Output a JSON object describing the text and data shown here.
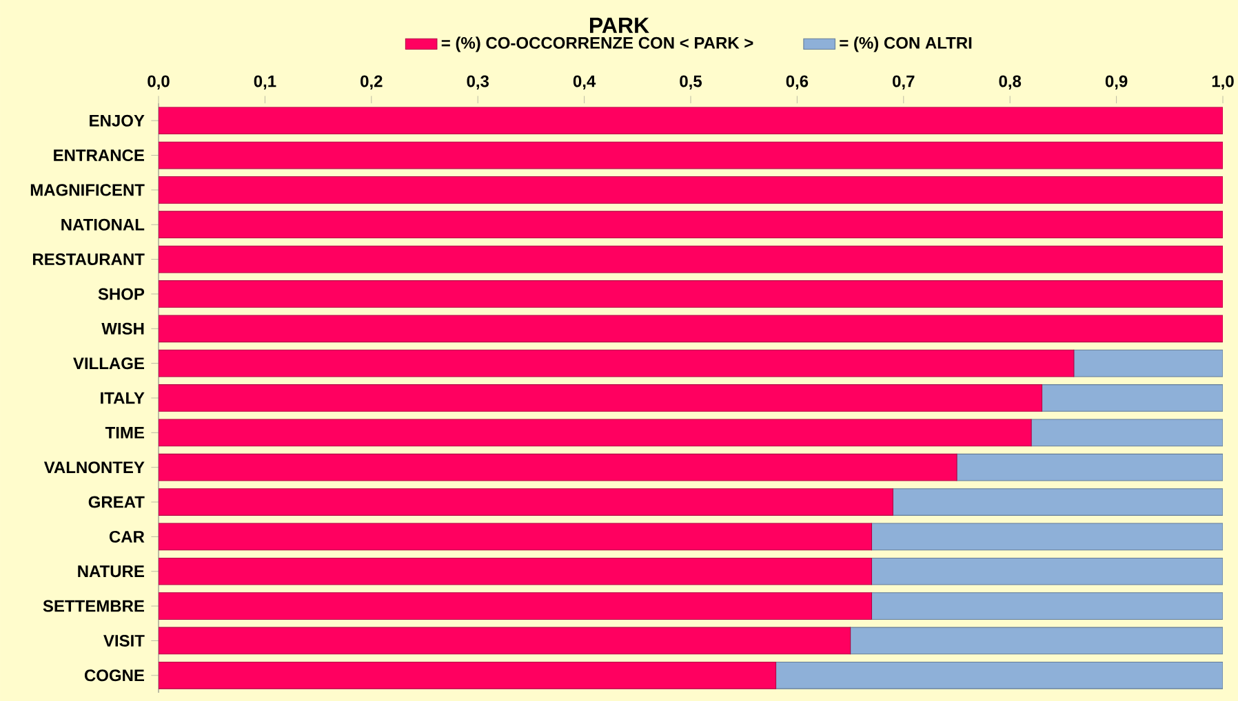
{
  "chart_data": {
    "type": "bar",
    "title": "PARK",
    "orientation": "horizontal",
    "stacked": true,
    "categories": [
      "ENJOY",
      "ENTRANCE",
      "MAGNIFICENT",
      "NATIONAL",
      "RESTAURANT",
      "SHOP",
      "WISH",
      "VILLAGE",
      "ITALY",
      "TIME",
      "VALNONTEY",
      "GREAT",
      "CAR",
      "NATURE",
      "SETTEMBRE",
      "VISIT",
      "COGNE"
    ],
    "series": [
      {
        "name": "= (%) CO-OCCORRENZE CON  < PARK >",
        "color": "#ff0060",
        "values": [
          1,
          1,
          1,
          1,
          1,
          1,
          1,
          0.86,
          0.83,
          0.82,
          0.75,
          0.69,
          0.67,
          0.67,
          0.67,
          0.65,
          0.58
        ]
      },
      {
        "name": "= (%)  CON ALTRI",
        "color": "#8eb0d8",
        "values": [
          0,
          0,
          0,
          0,
          0,
          0,
          0,
          0.14,
          0.17,
          0.18,
          0.25,
          0.31,
          0.33,
          0.33,
          0.33,
          0.35,
          0.42
        ]
      }
    ],
    "xlim": [
      0,
      1
    ],
    "xticks": [
      {
        "value": 0,
        "label": "0,0"
      },
      {
        "value": 0.1,
        "label": "0,1"
      },
      {
        "value": 0.2,
        "label": "0,2"
      },
      {
        "value": 0.3,
        "label": "0,3"
      },
      {
        "value": 0.4,
        "label": "0,4"
      },
      {
        "value": 0.5,
        "label": "0,5"
      },
      {
        "value": 0.6,
        "label": "0,6"
      },
      {
        "value": 0.7,
        "label": "0,7"
      },
      {
        "value": 0.8,
        "label": "0,8"
      },
      {
        "value": 0.9,
        "label": "0,9"
      },
      {
        "value": 1,
        "label": "1,0"
      }
    ],
    "legend": "top",
    "grid": false
  }
}
